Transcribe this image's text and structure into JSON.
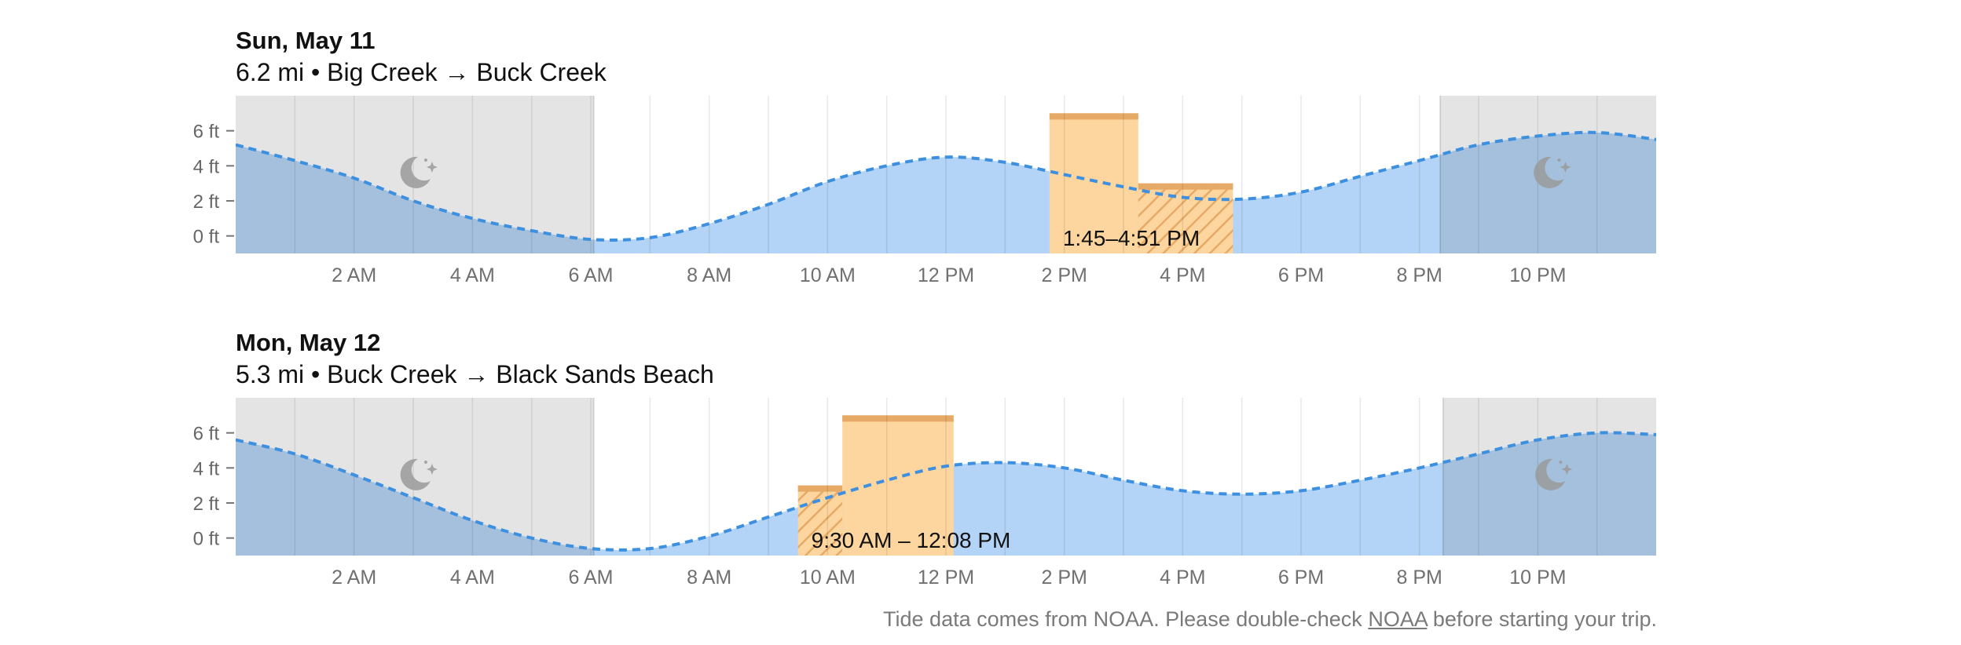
{
  "chart_data": [
    {
      "type": "area",
      "date_label": "Sun, May 11",
      "route_label": "6.2 mi • Big Creek → Buck Creek",
      "x_unit": "hour",
      "xlim": [
        0,
        24
      ],
      "ylim": [
        -1,
        8
      ],
      "y_ticks": [
        0,
        2,
        4,
        6
      ],
      "y_tick_labels": [
        "0 ft",
        "2 ft",
        "4 ft",
        "6 ft"
      ],
      "x_ticks": [
        2,
        4,
        6,
        8,
        10,
        12,
        14,
        16,
        18,
        20,
        22
      ],
      "x_tick_labels": [
        "2 AM",
        "4 AM",
        "6 AM",
        "8 AM",
        "10 AM",
        "12 PM",
        "2 PM",
        "4 PM",
        "6 PM",
        "8 PM",
        "10 PM"
      ],
      "night_periods": [
        [
          0,
          6.05
        ],
        [
          20.35,
          24
        ]
      ],
      "series": [
        {
          "x": [
            0,
            1,
            2,
            3,
            4,
            5,
            6,
            7,
            8,
            9,
            10,
            11,
            12,
            13,
            14,
            15,
            16,
            17,
            18,
            19,
            20,
            21,
            22,
            23,
            24
          ],
          "y": [
            5.2,
            4.3,
            3.3,
            2.0,
            1.0,
            0.3,
            -0.2,
            -0.1,
            0.7,
            1.8,
            3.1,
            4.0,
            4.5,
            4.2,
            3.5,
            2.8,
            2.2,
            2.1,
            2.5,
            3.4,
            4.3,
            5.2,
            5.7,
            5.9,
            5.5
          ]
        }
      ],
      "trip_window": {
        "label": "1:45–4:51 PM",
        "segments": [
          {
            "start": 13.75,
            "end": 15.25,
            "level": 7.0,
            "hatched": false
          },
          {
            "start": 15.25,
            "end": 16.85,
            "level": 3.0,
            "hatched": true
          }
        ]
      },
      "colors": {
        "water": "#b3d4f6",
        "line": "#3d8fe0",
        "night": "#e5e5e5",
        "trip": "#fdd59e",
        "trip_cap": "#e6aa66"
      }
    },
    {
      "type": "area",
      "date_label": "Mon, May 12",
      "route_label": "5.3 mi • Buck Creek → Black Sands Beach",
      "x_unit": "hour",
      "xlim": [
        0,
        24
      ],
      "ylim": [
        -1,
        8
      ],
      "y_ticks": [
        0,
        2,
        4,
        6
      ],
      "y_tick_labels": [
        "0 ft",
        "2 ft",
        "4 ft",
        "6 ft"
      ],
      "x_ticks": [
        2,
        4,
        6,
        8,
        10,
        12,
        14,
        16,
        18,
        20,
        22
      ],
      "x_tick_labels": [
        "2 AM",
        "4 AM",
        "6 AM",
        "8 AM",
        "10 AM",
        "12 PM",
        "2 PM",
        "4 PM",
        "6 PM",
        "8 PM",
        "10 PM"
      ],
      "night_periods": [
        [
          0,
          6.05
        ],
        [
          20.4,
          24
        ]
      ],
      "series": [
        {
          "x": [
            0,
            1,
            2,
            3,
            4,
            5,
            6,
            7,
            8,
            9,
            10,
            11,
            12,
            13,
            14,
            15,
            16,
            17,
            18,
            19,
            20,
            21,
            22,
            23,
            24
          ],
          "y": [
            5.6,
            4.8,
            3.6,
            2.3,
            1.0,
            0.0,
            -0.6,
            -0.6,
            0.1,
            1.2,
            2.3,
            3.3,
            4.1,
            4.3,
            4.0,
            3.3,
            2.7,
            2.5,
            2.7,
            3.3,
            4.0,
            4.8,
            5.6,
            6.0,
            5.9
          ]
        }
      ],
      "trip_window": {
        "label": "9:30 AM – 12:08 PM",
        "segments": [
          {
            "start": 9.5,
            "end": 10.25,
            "level": 3.0,
            "hatched": true
          },
          {
            "start": 10.25,
            "end": 12.13,
            "level": 7.0,
            "hatched": false
          }
        ]
      },
      "colors": {
        "water": "#b3d4f6",
        "line": "#3d8fe0",
        "night": "#e5e5e5",
        "trip": "#fdd59e",
        "trip_cap": "#e6aa66"
      }
    }
  ],
  "footer": {
    "text_before": "Tide data comes from NOAA. Please double-check ",
    "link_text": "NOAA",
    "text_after": " before starting your trip."
  },
  "icons": {
    "night": "moon-stars-icon"
  }
}
